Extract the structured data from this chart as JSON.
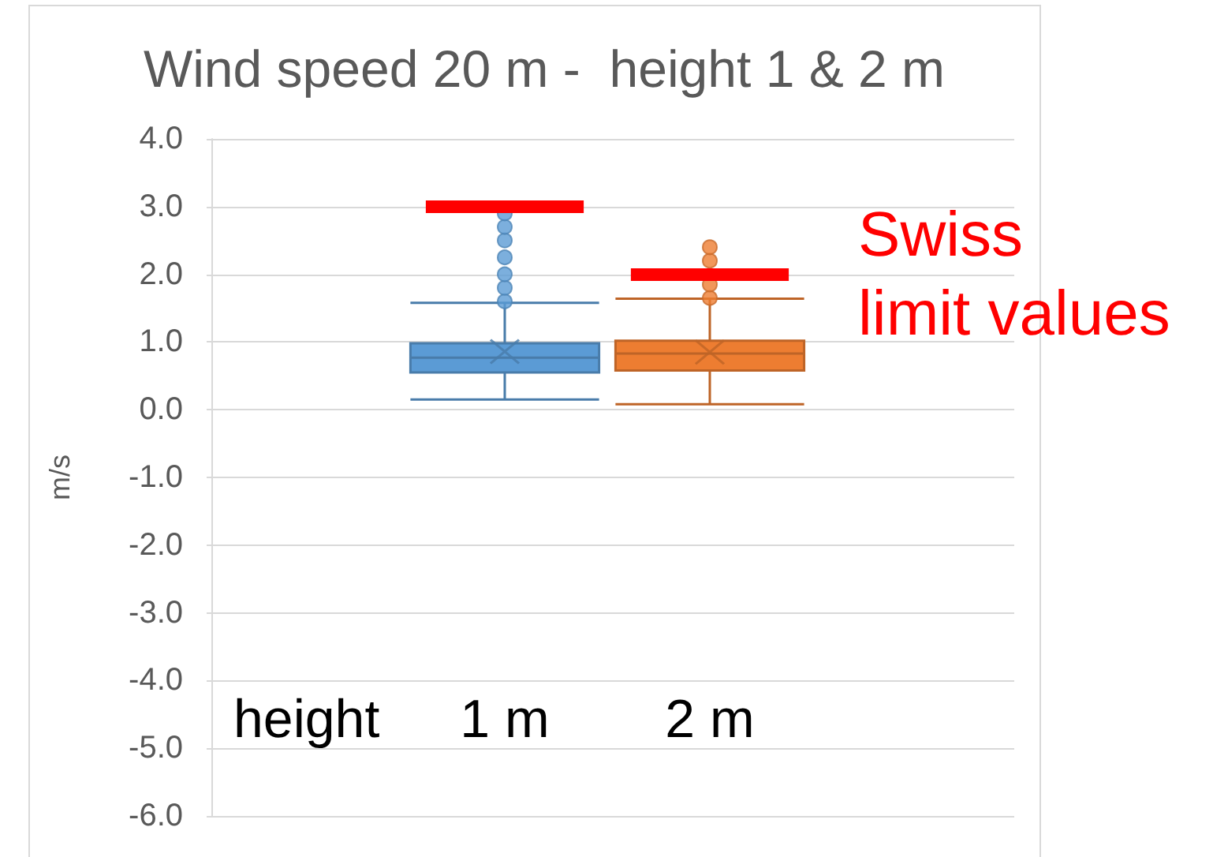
{
  "chart_data": {
    "type": "box",
    "title": "Wind speed 20 m -  height 1 & 2 m",
    "xlabel": "height",
    "ylabel": "m/s",
    "categories": [
      "1 m",
      "2 m"
    ],
    "colors": [
      "#5b9bd5",
      "#ed7d31"
    ],
    "boxes": [
      {
        "low": 0.15,
        "q1": 0.55,
        "median": 0.77,
        "q3": 0.98,
        "high": 1.58,
        "mean": 0.86,
        "outliers": [
          1.6,
          1.8,
          2.0,
          2.25,
          2.5,
          2.7,
          2.9
        ]
      },
      {
        "low": 0.08,
        "q1": 0.58,
        "median": 0.83,
        "q3": 1.02,
        "high": 1.64,
        "mean": 0.85,
        "outliers": [
          1.65,
          1.85,
          2.2,
          2.4
        ]
      }
    ],
    "ylim": [
      -6,
      4
    ],
    "yticks": [
      {
        "value": -6,
        "label": "-6.0"
      },
      {
        "value": -5,
        "label": "-5.0"
      },
      {
        "value": -4,
        "label": "-4.0"
      },
      {
        "value": -3,
        "label": "-3.0"
      },
      {
        "value": -2,
        "label": "-2.0"
      },
      {
        "value": -1,
        "label": "-1.0"
      },
      {
        "value": 0,
        "label": "0.0"
      },
      {
        "value": 1,
        "label": "1.0"
      },
      {
        "value": 2,
        "label": "2.0"
      },
      {
        "value": 3,
        "label": "3.0"
      },
      {
        "value": 4,
        "label": "4.0"
      }
    ],
    "grid": "y",
    "ref_lines": [
      {
        "axis": "y",
        "value": 3.0,
        "color": "#ff0000"
      },
      {
        "axis": "y",
        "value": 2.0,
        "label": "Swiss limit values",
        "color": "#ff0000"
      }
    ]
  }
}
